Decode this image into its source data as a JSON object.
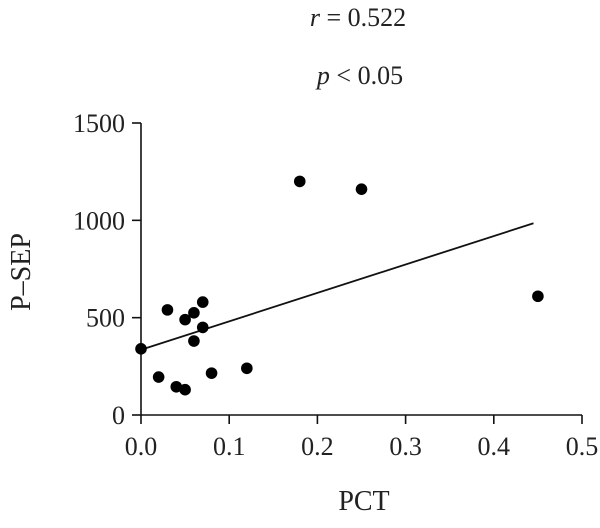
{
  "chart_data": {
    "type": "scatter",
    "xlabel": "PCT",
    "ylabel": "P–SEP",
    "xlim": [
      0,
      0.5
    ],
    "ylim": [
      0,
      1500
    ],
    "x_ticks": [
      0.0,
      0.1,
      0.2,
      0.3,
      0.4,
      0.5
    ],
    "x_tick_labels": [
      "0.0",
      "0.1",
      "0.2",
      "0.3",
      "0.4",
      "0.5"
    ],
    "y_ticks": [
      0,
      500,
      1000,
      1500
    ],
    "y_tick_labels": [
      "0",
      "500",
      "1000",
      "1500"
    ],
    "annotations": {
      "r_symbol": "r",
      "r_rest": " = 0.522",
      "p_symbol": "p",
      "p_rest": " < 0.05"
    },
    "points": [
      {
        "x": 0.0,
        "y": 340
      },
      {
        "x": 0.02,
        "y": 195
      },
      {
        "x": 0.03,
        "y": 540
      },
      {
        "x": 0.04,
        "y": 145
      },
      {
        "x": 0.05,
        "y": 130
      },
      {
        "x": 0.05,
        "y": 490
      },
      {
        "x": 0.06,
        "y": 525
      },
      {
        "x": 0.06,
        "y": 380
      },
      {
        "x": 0.07,
        "y": 580
      },
      {
        "x": 0.07,
        "y": 450
      },
      {
        "x": 0.08,
        "y": 215
      },
      {
        "x": 0.12,
        "y": 240
      },
      {
        "x": 0.18,
        "y": 1200
      },
      {
        "x": 0.25,
        "y": 1160
      },
      {
        "x": 0.45,
        "y": 610
      }
    ],
    "fit_line": {
      "x": [
        0.0,
        0.445
      ],
      "y": [
        335,
        985
      ]
    },
    "grid": false,
    "legend": "none"
  }
}
